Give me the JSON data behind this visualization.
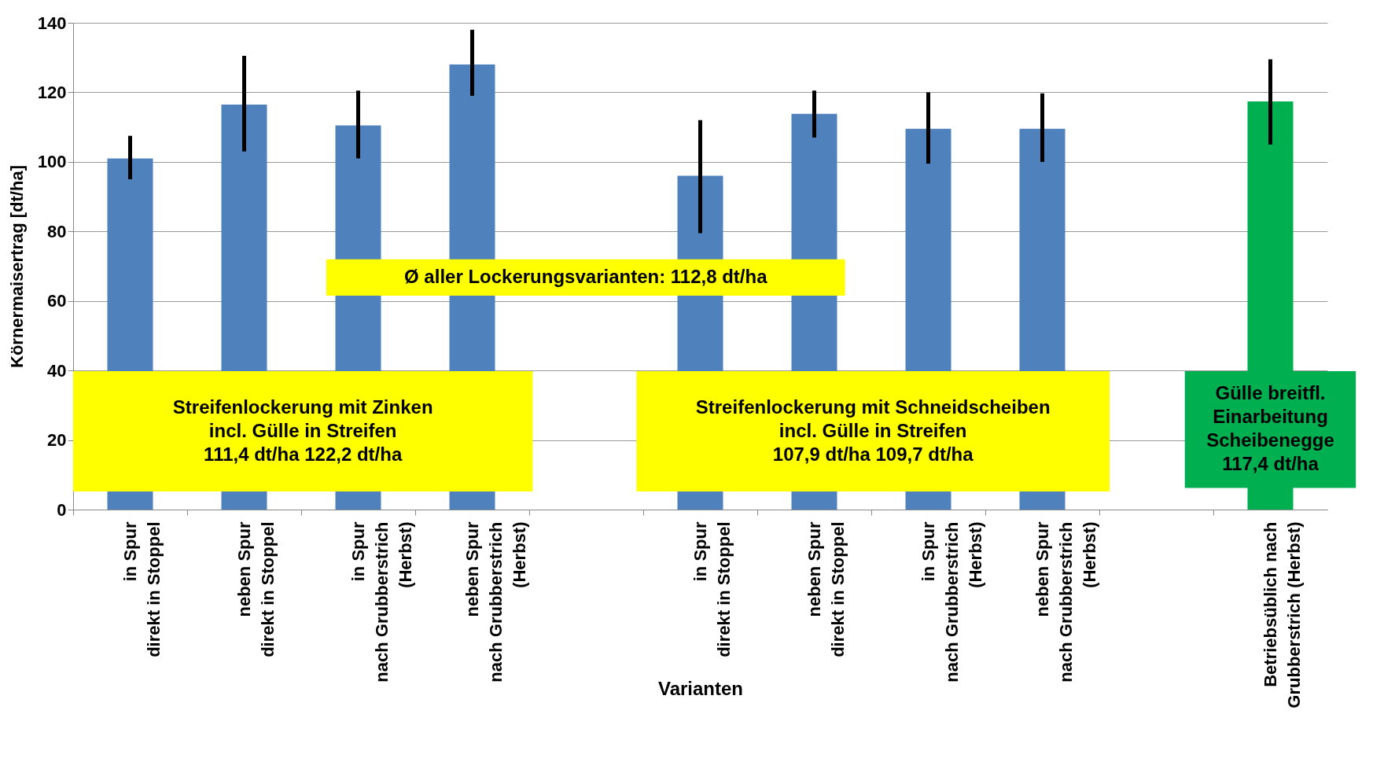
{
  "chart_data": {
    "type": "bar",
    "xlabel": "Varianten",
    "ylabel": "Körnermaisertrag  [dt/ha]",
    "categories": [
      "in Spur\ndirekt in Stoppel",
      "neben Spur\ndirekt in Stoppel",
      "in Spur\nnach Grubberstrich\n(Herbst)",
      "neben Spur\nnach Grubberstrich\n(Herbst)",
      null,
      "in Spur\ndirekt in Stoppel",
      "neben Spur\ndirekt in Stoppel",
      "in Spur\nnach Grubberstrich\n(Herbst)",
      "neben Spur\nnach Grubberstrich\n(Herbst)",
      null,
      "Betriebsüblich nach\nGrubberstrich (Herbst)"
    ],
    "values": [
      101,
      116.5,
      110.5,
      128,
      null,
      96,
      113.8,
      109.5,
      109.5,
      null,
      117.4
    ],
    "colors": [
      "#4f81bd",
      "#4f81bd",
      "#4f81bd",
      "#4f81bd",
      "#4f81bd",
      "#4f81bd",
      "#4f81bd",
      "#4f81bd",
      "#4f81bd",
      "#4f81bd",
      "#00b050"
    ],
    "errors": [
      [
        95,
        107.5
      ],
      [
        103,
        130.5
      ],
      [
        101,
        120.5
      ],
      [
        119,
        138
      ],
      null,
      [
        79.5,
        112
      ],
      [
        107,
        120.5
      ],
      [
        99.5,
        120
      ],
      [
        100,
        119.7
      ],
      null,
      [
        105,
        129.5
      ]
    ],
    "ylim": [
      0,
      140
    ],
    "yticks": [
      0,
      20,
      40,
      60,
      80,
      100,
      120,
      140
    ],
    "grid": "y",
    "annotations": [
      "Ø  aller Lockerungsvarianten:  112,8 dt/ha",
      "Streifenlockerung  mit Zinken\nincl. Gülle in Streifen\n111,4 dt/ha              122,2 dt/ha",
      "Streifenlockerung  mit Schneidscheiben\nincl. Gülle in Streifen\n107,9 dt/ha              109,7 dt/ha",
      "Gülle breitfl.\nEinarbeitung\nScheibenegge\n117,4 dt/ha"
    ]
  }
}
